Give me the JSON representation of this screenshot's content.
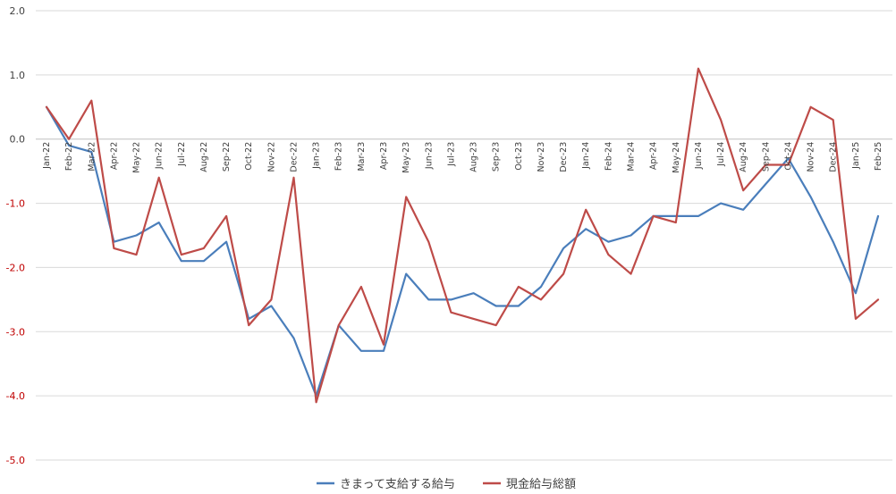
{
  "chart_data": {
    "type": "line",
    "title": "",
    "xlabel": "",
    "ylabel": "",
    "ylim": [
      -5.0,
      2.0
    ],
    "yticks": [
      "2.0",
      "1.0",
      "0.0",
      "-1.0",
      "-2.0",
      "-3.0",
      "-4.0",
      "-5.0"
    ],
    "grid": true,
    "legend_position": "bottom",
    "negative_tick_color": "#c00000",
    "categories": [
      "Jan-22",
      "Feb-22",
      "Mar-22",
      "Apr-22",
      "May-22",
      "Jun-22",
      "Jul-22",
      "Aug-22",
      "Sep-22",
      "Oct-22",
      "Nov-22",
      "Dec-22",
      "Jan-23",
      "Feb-23",
      "Mar-23",
      "Apr-23",
      "May-23",
      "Jun-23",
      "Jul-23",
      "Aug-23",
      "Sep-23",
      "Oct-23",
      "Nov-23",
      "Dec-23",
      "Jan-24",
      "Feb-24",
      "Mar-24",
      "Apr-24",
      "May-24",
      "Jun-24",
      "Jul-24",
      "Aug-24",
      "Sep-24",
      "Oct-24",
      "Nov-24",
      "Dec-24",
      "Jan-25",
      "Feb-25"
    ],
    "series": [
      {
        "name": "きまって支給する給与",
        "color": "#4a7ebb",
        "values": [
          0.5,
          -0.1,
          -0.2,
          -1.6,
          -1.5,
          -1.3,
          -1.9,
          -1.9,
          -1.6,
          -2.8,
          -2.6,
          -3.1,
          -4.0,
          -2.9,
          -3.3,
          -3.3,
          -2.1,
          -2.5,
          -2.5,
          -2.4,
          -2.6,
          -2.6,
          -2.3,
          -1.7,
          -1.4,
          -1.6,
          -1.5,
          -1.2,
          -1.2,
          -1.2,
          -1.0,
          -1.1,
          -0.7,
          -0.3,
          -0.9,
          -1.6,
          -2.4,
          -1.2
        ]
      },
      {
        "name": "現金給与総額",
        "color": "#be4b48",
        "values": [
          0.5,
          0.0,
          0.6,
          -1.7,
          -1.8,
          -0.6,
          -1.8,
          -1.7,
          -1.2,
          -2.9,
          -2.5,
          -0.6,
          -4.1,
          -2.9,
          -2.3,
          -3.2,
          -0.9,
          -1.6,
          -2.7,
          -2.8,
          -2.9,
          -2.3,
          -2.5,
          -2.1,
          -1.1,
          -1.8,
          -2.1,
          -1.2,
          -1.3,
          1.1,
          0.3,
          -0.8,
          -0.4,
          -0.4,
          0.5,
          0.3,
          -2.8,
          -2.5
        ]
      }
    ]
  }
}
